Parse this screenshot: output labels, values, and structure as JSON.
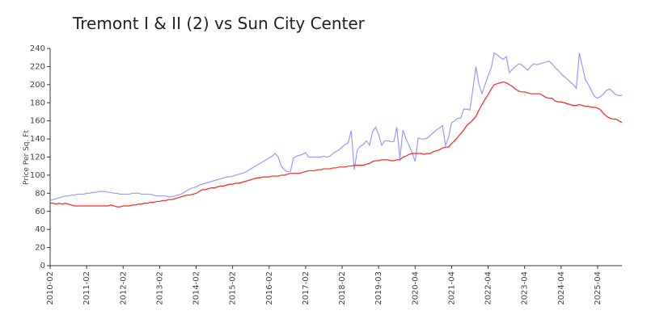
{
  "chart_data": {
    "type": "line",
    "title": "Tremont I & II (2) vs Sun City Center",
    "y_label": "Price Per Sq. Ft",
    "ylim": [
      0,
      240
    ],
    "yticks": [
      0,
      20,
      40,
      60,
      80,
      100,
      120,
      140,
      160,
      180,
      200,
      220,
      240
    ],
    "categories": [
      "2010-02",
      null,
      null,
      null,
      null,
      null,
      null,
      null,
      null,
      null,
      null,
      null,
      "2011-02",
      null,
      null,
      null,
      null,
      null,
      null,
      null,
      null,
      null,
      null,
      null,
      "2012-02",
      null,
      null,
      null,
      null,
      null,
      null,
      null,
      null,
      null,
      null,
      null,
      "2013-02",
      null,
      null,
      null,
      null,
      null,
      null,
      null,
      null,
      null,
      null,
      null,
      "2014-02",
      null,
      null,
      null,
      null,
      null,
      null,
      null,
      null,
      null,
      null,
      null,
      "2015-02",
      null,
      null,
      null,
      null,
      null,
      null,
      null,
      null,
      null,
      null,
      null,
      "2016-02",
      null,
      null,
      null,
      null,
      null,
      null,
      null,
      null,
      null,
      null,
      null,
      "2017-02",
      null,
      null,
      null,
      null,
      null,
      null,
      null,
      null,
      null,
      null,
      null,
      "2018-02",
      null,
      null,
      null,
      null,
      null,
      null,
      null,
      null,
      null,
      null,
      null,
      "2019-03",
      null,
      null,
      null,
      null,
      null,
      null,
      null,
      null,
      null,
      null,
      null,
      "2020-04",
      null,
      null,
      null,
      null,
      null,
      null,
      null,
      null,
      null,
      null,
      null,
      "2021-04",
      null,
      null,
      null,
      null,
      null,
      null,
      null,
      null,
      null,
      null,
      null,
      "2022-04",
      null,
      null,
      null,
      null,
      null,
      null,
      null,
      null,
      null,
      null,
      null,
      "2023-04",
      null,
      null,
      null,
      null,
      null,
      null,
      null,
      null,
      null,
      null,
      null,
      "2024-04",
      null,
      null,
      null,
      null,
      null,
      null,
      null,
      null,
      null,
      null,
      null,
      "2025-04",
      null,
      null,
      null,
      null,
      null,
      null,
      null,
      null
    ],
    "series": [
      {
        "color": "#9999ff",
        "values": [
          72,
          73,
          74,
          75,
          76,
          77,
          77,
          78,
          78,
          79,
          79,
          79,
          80,
          80,
          81,
          81,
          82,
          82,
          82,
          81,
          81,
          80,
          80,
          79,
          79,
          79,
          79,
          80,
          80,
          80,
          79,
          79,
          79,
          79,
          78,
          77,
          77,
          77,
          77,
          76,
          76,
          77,
          78,
          79,
          81,
          83,
          85,
          86,
          87,
          89,
          90,
          91,
          92,
          93,
          94,
          95,
          96,
          97,
          98,
          98,
          99,
          100,
          101,
          102,
          103,
          105,
          107,
          109,
          111,
          113,
          115,
          117,
          119,
          121,
          124,
          120,
          110,
          106,
          104,
          104,
          119,
          121,
          122,
          123,
          125,
          120,
          120,
          120,
          120,
          120,
          121,
          120,
          121,
          124,
          126,
          128,
          131,
          134,
          136,
          149,
          106,
          128,
          132,
          134,
          138,
          133,
          148,
          153,
          145,
          133,
          138,
          138,
          137,
          137,
          153,
          118,
          150,
          140,
          133,
          125,
          115,
          141,
          140,
          140,
          141,
          144,
          147,
          150,
          152,
          155,
          133,
          142,
          158,
          160,
          163,
          163,
          173,
          173,
          172,
          195,
          220,
          200,
          190,
          200,
          210,
          218,
          235,
          233,
          230,
          228,
          231,
          213,
          217,
          220,
          223,
          222,
          219,
          216,
          220,
          223,
          222,
          223,
          224,
          225,
          226,
          223,
          219,
          216,
          212,
          209,
          206,
          203,
          200,
          196,
          235,
          220,
          205,
          200,
          193,
          187,
          185,
          187,
          190,
          194,
          195,
          192,
          189,
          188,
          188
        ]
      },
      {
        "color": "#ff2020",
        "values": [
          69,
          69,
          68,
          69,
          68,
          69,
          68,
          67,
          66,
          66,
          66,
          66,
          66,
          66,
          66,
          66,
          66,
          66,
          66,
          66,
          67,
          66,
          65,
          65,
          66,
          66,
          66,
          67,
          67,
          68,
          68,
          69,
          69,
          70,
          70,
          71,
          71,
          72,
          72,
          73,
          73,
          74,
          75,
          76,
          77,
          78,
          78,
          79,
          80,
          82,
          84,
          84,
          85,
          86,
          86,
          87,
          88,
          88,
          89,
          90,
          90,
          91,
          91,
          92,
          93,
          94,
          95,
          96,
          97,
          97,
          98,
          98,
          98,
          99,
          99,
          99,
          100,
          100,
          101,
          102,
          102,
          102,
          102,
          103,
          104,
          105,
          105,
          105,
          106,
          106,
          107,
          107,
          107,
          108,
          108,
          109,
          109,
          109,
          110,
          110,
          111,
          111,
          111,
          111,
          112,
          113,
          115,
          116,
          116,
          117,
          117,
          117,
          116,
          116,
          117,
          117,
          120,
          121,
          123,
          124,
          124,
          124,
          124,
          123,
          124,
          124,
          126,
          127,
          128,
          130,
          131,
          131,
          135,
          138,
          142,
          146,
          150,
          155,
          158,
          161,
          165,
          172,
          178,
          184,
          189,
          195,
          200,
          201,
          202,
          203,
          202,
          200,
          198,
          195,
          193,
          192,
          192,
          191,
          190,
          190,
          190,
          190,
          188,
          186,
          185,
          185,
          182,
          181,
          181,
          180,
          179,
          178,
          177,
          177,
          178,
          177,
          176,
          176,
          175,
          175,
          174,
          172,
          168,
          165,
          163,
          162,
          162,
          160,
          158
        ]
      }
    ]
  }
}
